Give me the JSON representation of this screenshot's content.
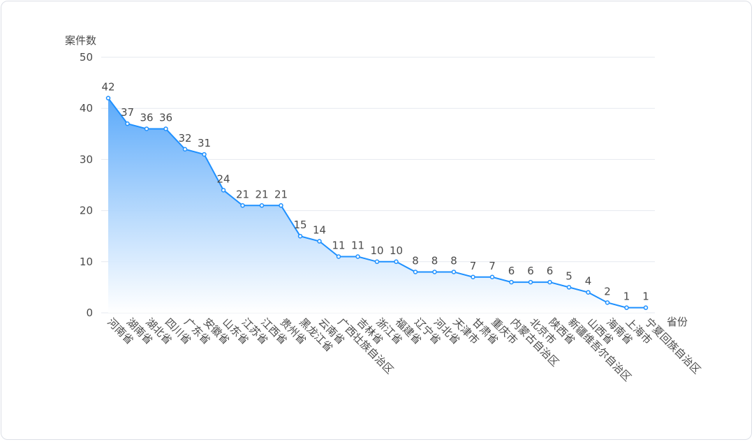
{
  "chart_data": {
    "type": "area",
    "ylabel": "案件数",
    "xlabel": "省份",
    "ylim": [
      0,
      50
    ],
    "yticks": [
      0,
      10,
      20,
      30,
      40,
      50
    ],
    "categories": [
      "河南省",
      "湖南省",
      "湖北省",
      "四川省",
      "广东省",
      "安徽省",
      "山东省",
      "江苏省",
      "江西省",
      "贵州省",
      "黑龙江省",
      "云南省",
      "广西壮族自治区",
      "吉林省",
      "浙江省",
      "福建省",
      "辽宁省",
      "河北省",
      "天津市",
      "甘肃省",
      "重庆市",
      "内蒙古自治区",
      "北京市",
      "陕西省",
      "新疆维吾尔自治区",
      "山西省",
      "海南省",
      "上海市",
      "宁夏回族自治区"
    ],
    "values": [
      42,
      37,
      36,
      36,
      32,
      31,
      24,
      21,
      21,
      21,
      15,
      14,
      11,
      11,
      10,
      10,
      8,
      8,
      8,
      7,
      7,
      6,
      6,
      6,
      5,
      4,
      2,
      1,
      1
    ],
    "grid": true,
    "colors": {
      "line": "#1e90ff",
      "fill_top": "#5aa9fa",
      "fill_bottom": "#ffffff",
      "grid": "#e6e9ef",
      "text": "#4a4a4a"
    }
  }
}
